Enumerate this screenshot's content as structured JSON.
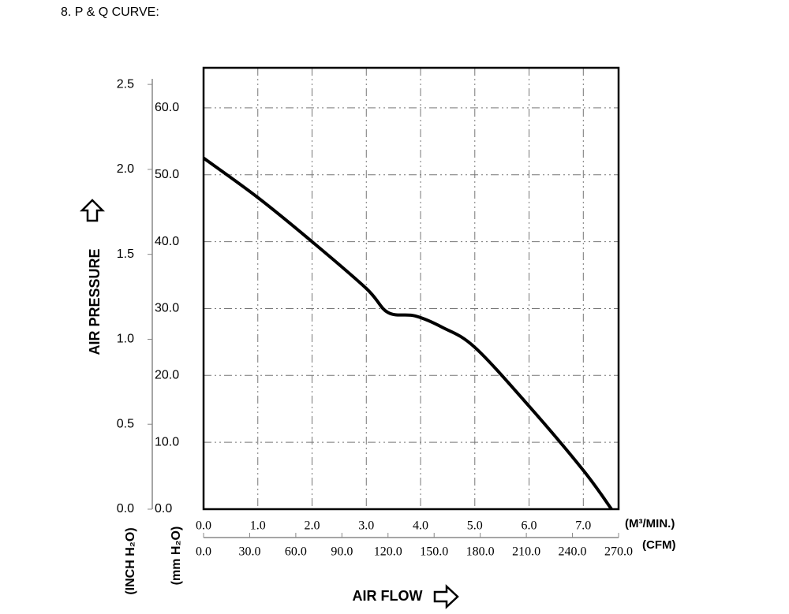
{
  "chart_data": {
    "type": "line",
    "title": "8. P & Q CURVE:",
    "y_label": "AIR PRESSURE",
    "x_label": "AIR FLOW",
    "x_unit": "(M³/MIN.)",
    "x2_unit": "(CFM)",
    "y_unit": "(mm H₂O)",
    "y2_unit": "(INCH H₂O)",
    "color": "#000000",
    "x": [
      0,
      1.0,
      2.0,
      3.0,
      3.4,
      3.9,
      4.4,
      5.0,
      6.0,
      7.0,
      7.52
    ],
    "values": [
      52.5,
      46.6,
      40.0,
      33.0,
      29.4,
      28.9,
      27.2,
      24.2,
      15.4,
      5.8,
      0
    ],
    "xlim": [
      0,
      7.65
    ],
    "xticks": [
      {
        "value": 0,
        "label": "0.0"
      },
      {
        "value": 1,
        "label": "1.0"
      },
      {
        "value": 2,
        "label": "2.0"
      },
      {
        "value": 3,
        "label": "3.0"
      },
      {
        "value": 4,
        "label": "4.0"
      },
      {
        "value": 5,
        "label": "5.0"
      },
      {
        "value": 6,
        "label": "6.0"
      },
      {
        "value": 7,
        "label": "7.0"
      }
    ],
    "x2lim": [
      0,
      270
    ],
    "x2ticks": [
      {
        "value": 0,
        "label": "0.0"
      },
      {
        "value": 30,
        "label": "30.0"
      },
      {
        "value": 60,
        "label": "60.0"
      },
      {
        "value": 90,
        "label": "90.0"
      },
      {
        "value": 120,
        "label": "120.0"
      },
      {
        "value": 150,
        "label": "150.0"
      },
      {
        "value": 180,
        "label": "180.0"
      },
      {
        "value": 210,
        "label": "210.0"
      },
      {
        "value": 240,
        "label": "240.0"
      },
      {
        "value": 270,
        "label": "270.0"
      }
    ],
    "ylim": [
      0,
      66
    ],
    "yticks": [
      {
        "value": 0,
        "label": "0.0"
      },
      {
        "value": 10,
        "label": "10.0"
      },
      {
        "value": 20,
        "label": "20.0"
      },
      {
        "value": 30,
        "label": "30.0"
      },
      {
        "value": 40,
        "label": "40.0"
      },
      {
        "value": 50,
        "label": "50.0"
      },
      {
        "value": 60,
        "label": "60.0"
      }
    ],
    "y2lim": [
      0,
      2.598
    ],
    "y2ticks": [
      {
        "value": 0,
        "label": "0.0"
      },
      0.5,
      {
        "value": 1,
        "label": "1.0"
      },
      1.5,
      {
        "value": 2,
        "label": "2.0"
      },
      2.5
    ],
    "grid": true
  }
}
